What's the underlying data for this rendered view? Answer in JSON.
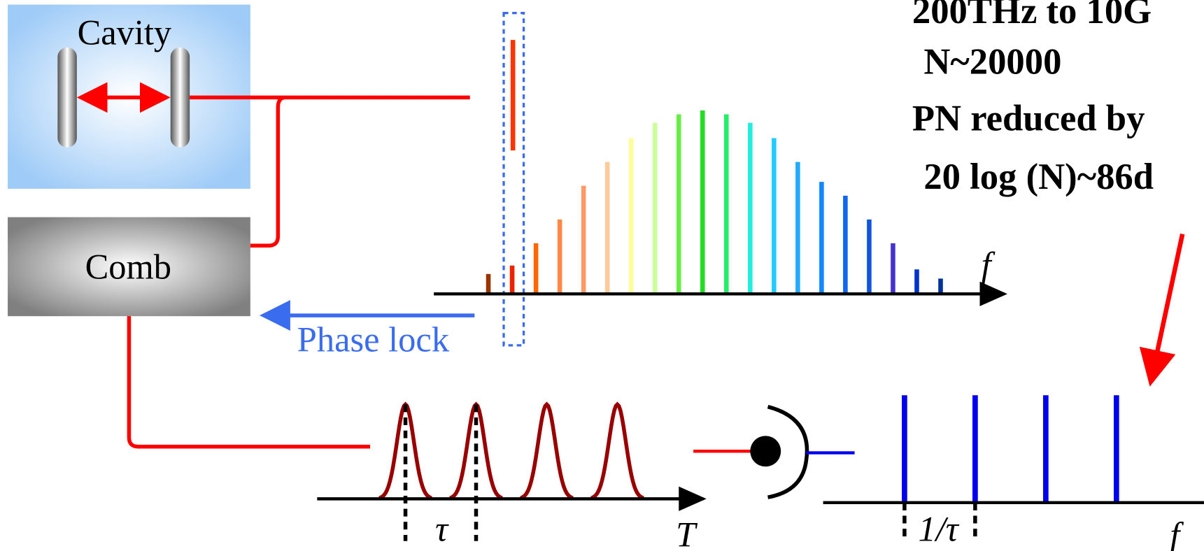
{
  "cavity_label": "Cavity",
  "comb_label": "Comb",
  "phase_lock_label": "Phase lock",
  "spectrum_axis_label": "f",
  "time_axis_label": "T",
  "pulse_spacing_label": "τ",
  "rf_spacing_label": "1/τ",
  "rf_axis_label": "f",
  "notes": [
    "200THz to 10G",
    "N~20000",
    "PN reduced by",
    "20 log (N)~86d"
  ]
}
